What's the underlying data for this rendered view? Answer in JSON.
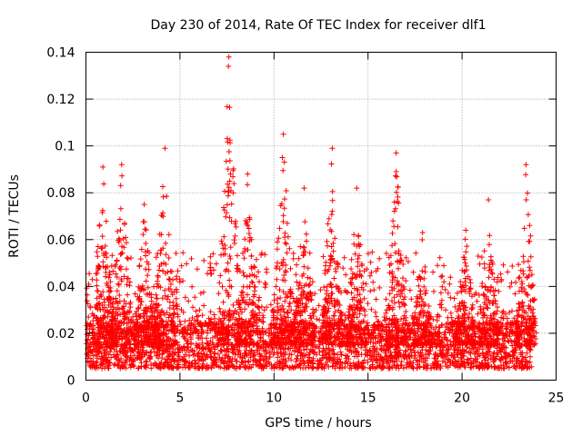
{
  "chart_data": {
    "type": "scatter",
    "title": "Day 230 of 2014, Rate Of TEC Index for receiver dlf1",
    "xlabel": "GPS time / hours",
    "ylabel": "ROTI / TECUs",
    "xlim": [
      0,
      25
    ],
    "ylim": [
      0,
      0.14
    ],
    "x_ticks": [
      0,
      5,
      10,
      15,
      20,
      25
    ],
    "x_tick_labels": [
      "0",
      "5",
      "10",
      "15",
      "20",
      "25"
    ],
    "y_ticks": [
      0,
      0.02,
      0.04,
      0.06,
      0.08,
      0.1,
      0.12,
      0.14
    ],
    "y_tick_labels": [
      "0",
      "0.02",
      "0.04",
      "0.06",
      "0.08",
      "0.1",
      "0.12",
      "0.14"
    ],
    "grid": true,
    "marker": "+",
    "color": "#ff0000",
    "x_range_of_data": [
      0,
      23.7
    ],
    "baseline_band": [
      0.005,
      0.025
    ],
    "peaks": [
      {
        "x": 0.9,
        "y": 0.091
      },
      {
        "x": 1.9,
        "y": 0.092
      },
      {
        "x": 3.1,
        "y": 0.075
      },
      {
        "x": 4.2,
        "y": 0.099
      },
      {
        "x": 7.6,
        "y": 0.138
      },
      {
        "x": 8.6,
        "y": 0.088
      },
      {
        "x": 10.5,
        "y": 0.105
      },
      {
        "x": 11.6,
        "y": 0.082
      },
      {
        "x": 13.1,
        "y": 0.099
      },
      {
        "x": 14.4,
        "y": 0.082
      },
      {
        "x": 16.5,
        "y": 0.097
      },
      {
        "x": 17.9,
        "y": 0.063
      },
      {
        "x": 20.2,
        "y": 0.064
      },
      {
        "x": 21.4,
        "y": 0.077
      },
      {
        "x": 23.4,
        "y": 0.092
      }
    ]
  }
}
